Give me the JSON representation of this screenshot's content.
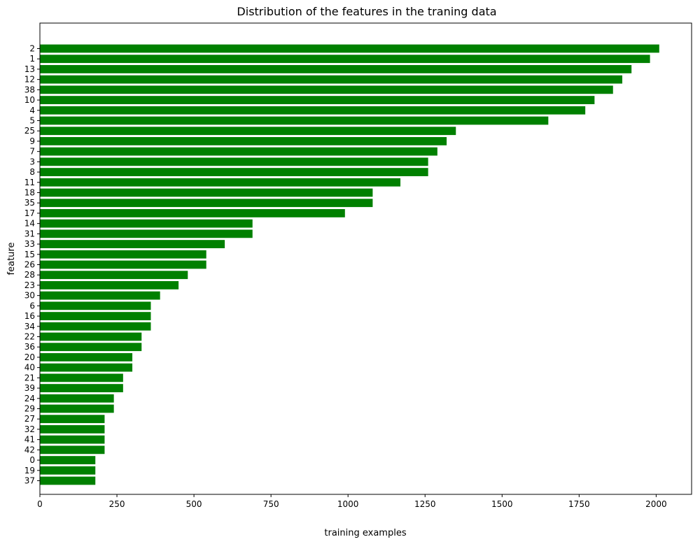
{
  "chart_data": {
    "type": "bar",
    "orientation": "horizontal",
    "title": "Distribution of the features in the traning data",
    "xlabel": "training examples",
    "ylabel": "feature",
    "xlim": [
      0,
      2115
    ],
    "xticks": [
      0,
      250,
      500,
      750,
      1000,
      1250,
      1500,
      1750,
      2000
    ],
    "grid": false,
    "bar_color": "#008000",
    "categories": [
      "2",
      "1",
      "13",
      "12",
      "38",
      "10",
      "4",
      "5",
      "25",
      "9",
      "7",
      "3",
      "8",
      "11",
      "18",
      "35",
      "17",
      "14",
      "31",
      "33",
      "15",
      "26",
      "28",
      "23",
      "30",
      "6",
      "16",
      "34",
      "22",
      "36",
      "20",
      "40",
      "21",
      "39",
      "24",
      "29",
      "27",
      "32",
      "41",
      "42",
      "0",
      "19",
      "37"
    ],
    "values": [
      2010,
      1980,
      1920,
      1890,
      1860,
      1800,
      1770,
      1650,
      1350,
      1320,
      1290,
      1260,
      1260,
      1170,
      1080,
      1080,
      990,
      690,
      690,
      600,
      540,
      540,
      480,
      450,
      390,
      360,
      360,
      360,
      330,
      330,
      300,
      300,
      270,
      270,
      240,
      240,
      210,
      210,
      210,
      210,
      180,
      180,
      180
    ]
  }
}
